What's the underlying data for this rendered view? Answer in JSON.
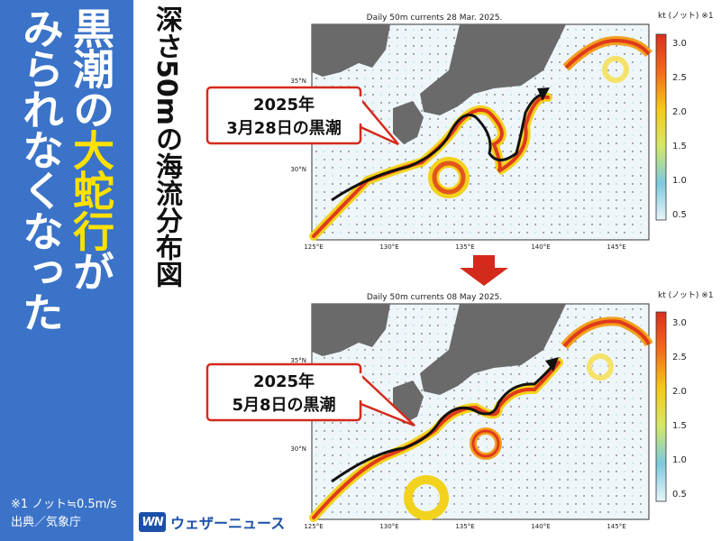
{
  "headline": {
    "line1_a": "黒潮の",
    "line1_b": "大蛇行",
    "line1_c": "が",
    "line2": "みられなくなった"
  },
  "subtitle": "深さ50mの海流分布図",
  "footnote": {
    "note": "※1 ノット≒0.5m/s",
    "source": "出典／気象庁"
  },
  "brand": {
    "mark": "WN",
    "name": "ウェザーニュース"
  },
  "colors": {
    "sidebar": "#3b73c8",
    "highlight": "#ffe100",
    "arrow": "#d42a1c"
  },
  "maps": [
    {
      "title": "Daily 50m currents 28 Mar. 2025.",
      "callout": {
        "line1": "2025年",
        "line2": "3月28日の黒潮"
      },
      "colorbar": {
        "unit": "kt (ノット) ※1",
        "ticks": [
          "3.0",
          "2.5",
          "2.0",
          "1.5",
          "1.0",
          "0.5"
        ]
      },
      "xticks": [
        "125°E",
        "130°E",
        "135°E",
        "140°E",
        "145°E"
      ],
      "yticks": [
        "35°N",
        "30°N"
      ]
    },
    {
      "title": "Daily 50m currents 08 May 2025.",
      "callout": {
        "line1": "2025年",
        "line2": "5月8日の黒潮"
      },
      "colorbar": {
        "unit": "kt (ノット) ※1",
        "ticks": [
          "3.0",
          "2.5",
          "2.0",
          "1.5",
          "1.0",
          "0.5"
        ]
      },
      "xticks": [
        "125°E",
        "130°E",
        "135°E",
        "140°E",
        "145°E"
      ],
      "yticks": [
        "35°N",
        "30°N"
      ]
    }
  ]
}
